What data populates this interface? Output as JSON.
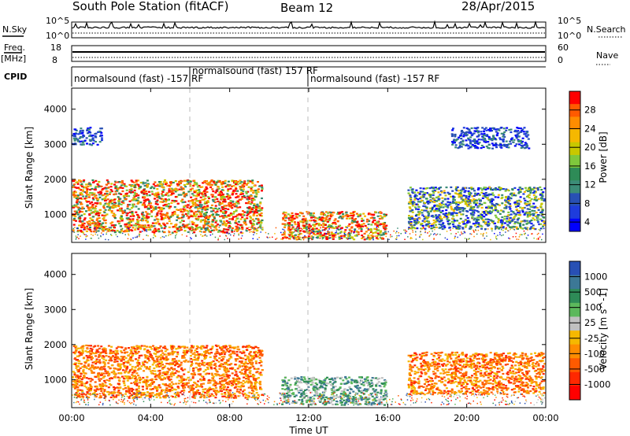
{
  "header": {
    "station": "South Pole Station (fitACF)",
    "beam": "Beam 12",
    "date": "28/Apr/2015"
  },
  "left_labels": {
    "nsky": "N.Sky",
    "freq": "Freq.",
    "freq_unit": "[MHz]",
    "cpid": "CPID",
    "nsky_ticks": [
      "10^5",
      "10^0"
    ],
    "freq_ticks": [
      "18",
      "8"
    ]
  },
  "right_labels": {
    "nsearch": "N.Search",
    "nave": "Nave",
    "nsearch_ticks": [
      "10^5",
      "10^0"
    ],
    "nave_ticks": [
      "60",
      "0"
    ]
  },
  "cpid_segments": [
    {
      "label": "normalsound (fast) -157 RF",
      "start_hour": 0
    },
    {
      "label": "normalsound (fast) 157 RF",
      "start_hour": 6
    },
    {
      "label": "normalsound (fast) -157 RF",
      "start_hour": 12
    }
  ],
  "x_axis": {
    "title": "Time UT",
    "range_hours": [
      0,
      24
    ],
    "ticks": [
      {
        "hour": 0,
        "label": "00:00"
      },
      {
        "hour": 4,
        "label": "04:00"
      },
      {
        "hour": 8,
        "label": "08:00"
      },
      {
        "hour": 12,
        "label": "12:00"
      },
      {
        "hour": 16,
        "label": "16:00"
      },
      {
        "hour": 20,
        "label": "20:00"
      },
      {
        "hour": 24,
        "label": "00:00"
      }
    ]
  },
  "chart_data": [
    {
      "type": "heatmap",
      "title": "Power",
      "ylabel": "Slant Range [km]",
      "ylim": [
        200,
        4600
      ],
      "yticks": [
        1000,
        2000,
        3000,
        4000
      ],
      "colorbar": {
        "label": "Power [dB]",
        "ticks": [
          "28",
          "24",
          "20",
          "16",
          "12",
          "8",
          "4"
        ],
        "colors": [
          "#ff0000",
          "#ff5a00",
          "#ff8c00",
          "#f5b800",
          "#c8c800",
          "#7fc83c",
          "#2e8b57",
          "#3c8c78",
          "#2850b4",
          "#1e3cdc",
          "#0000ff"
        ]
      },
      "regions": [
        {
          "t0": 0.0,
          "t1": 9.6,
          "r0": 500,
          "r1": 2000,
          "level": "high"
        },
        {
          "t0": 0.0,
          "t1": 1.5,
          "r0": 3000,
          "r1": 3500,
          "level": "low"
        },
        {
          "t0": 10.6,
          "t1": 15.9,
          "r0": 300,
          "r1": 1100,
          "level": "high"
        },
        {
          "t0": 17.0,
          "t1": 23.9,
          "r0": 600,
          "r1": 1800,
          "level": "mid"
        },
        {
          "t0": 19.2,
          "t1": 23.1,
          "r0": 2900,
          "r1": 3500,
          "level": "low"
        }
      ]
    },
    {
      "type": "heatmap",
      "title": "Velocity",
      "ylabel": "Slant Range [km]",
      "ylim": [
        200,
        4600
      ],
      "yticks": [
        1000,
        2000,
        3000,
        4000
      ],
      "colorbar": {
        "label": "Velocity [m s^-1]",
        "ticks": [
          "1000",
          "500",
          "100",
          "25",
          "-25",
          "-100",
          "-500",
          "-1000"
        ],
        "colors": [
          "#2850b4",
          "#3c7896",
          "#2e8b57",
          "#5cb85c",
          "#c0c0c0",
          "#f5b800",
          "#ff8c00",
          "#ff5a00",
          "#ff2800",
          "#ff0000"
        ]
      },
      "regions": [
        {
          "t0": 0.0,
          "t1": 9.6,
          "r0": 500,
          "r1": 2000,
          "level": "away"
        },
        {
          "t0": 10.6,
          "t1": 15.9,
          "r0": 300,
          "r1": 1100,
          "level": "toward"
        },
        {
          "t0": 17.0,
          "t1": 23.9,
          "r0": 600,
          "r1": 1800,
          "level": "away"
        }
      ]
    }
  ]
}
